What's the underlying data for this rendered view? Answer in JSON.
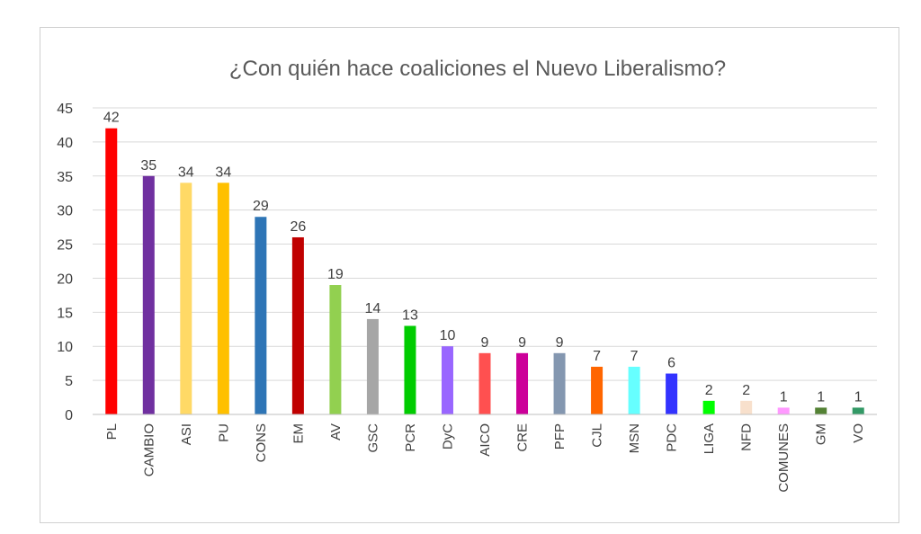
{
  "chart_data": {
    "type": "bar",
    "title": "¿Con quién hace coaliciones el Nuevo Liberalismo?",
    "categories": [
      "PL",
      "CAMBIO",
      "ASI",
      "PU",
      "CONS",
      "EM",
      "AV",
      "GSC",
      "PCR",
      "DyC",
      "AICO",
      "CRE",
      "PFP",
      "CJL",
      "MSN",
      "PDC",
      "LIGA",
      "NFD",
      "COMUNES",
      "GM",
      "VO"
    ],
    "values": [
      42,
      35,
      34,
      34,
      29,
      26,
      19,
      14,
      13,
      10,
      9,
      9,
      9,
      7,
      7,
      6,
      2,
      2,
      1,
      1,
      1
    ],
    "colors": [
      "#ff0000",
      "#7030a0",
      "#ffd966",
      "#ffc000",
      "#2e75b6",
      "#c00000",
      "#92d050",
      "#a6a6a6",
      "#00cc00",
      "#9966ff",
      "#ff5050",
      "#cc0099",
      "#8497b0",
      "#ff6600",
      "#66ffff",
      "#3333ff",
      "#00ff00",
      "#f8e0cc",
      "#ff99ff",
      "#548235",
      "#339966"
    ],
    "yticks": [
      0,
      5,
      10,
      15,
      20,
      25,
      30,
      35,
      40,
      45
    ],
    "ylim": [
      0,
      45
    ],
    "grid": true,
    "legend": "none"
  }
}
